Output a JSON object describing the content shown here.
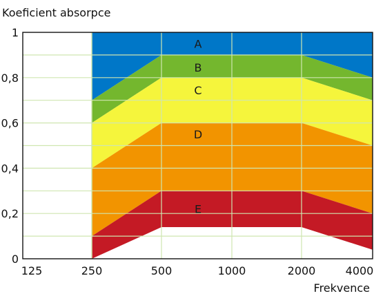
{
  "chart_data": {
    "type": "area",
    "ylabel": "Koeficient absorpce",
    "xlabel": "Frekvence",
    "x_ticks": [
      "125",
      "250",
      "500",
      "1000",
      "2000",
      "4000"
    ],
    "y_ticks": [
      "0",
      "0,2",
      "0,4",
      "0,6",
      "0,8",
      "1"
    ],
    "ylim": [
      0,
      1
    ],
    "grid": true,
    "colors": {
      "A": "#0077c8",
      "B": "#74b72e",
      "C": "#f5f53c",
      "D": "#f29400",
      "E": "#c41a25",
      "grid": "#cfe6b0"
    },
    "x_frequencies": [
      250,
      500,
      1000,
      2000,
      4000
    ],
    "bands": [
      {
        "label": "A",
        "upper": [
          1,
          1,
          1,
          1,
          1
        ],
        "lower": [
          0.7,
          0.9,
          0.9,
          0.9,
          0.8
        ],
        "label_at": [
          1000,
          0.95
        ]
      },
      {
        "label": "B",
        "upper": [
          0.7,
          0.9,
          0.9,
          0.9,
          0.8
        ],
        "lower": [
          0.6,
          0.8,
          0.8,
          0.8,
          0.7
        ],
        "label_at": [
          1000,
          0.845
        ]
      },
      {
        "label": "C",
        "upper": [
          0.6,
          0.8,
          0.8,
          0.8,
          0.7
        ],
        "lower": [
          0.4,
          0.6,
          0.6,
          0.6,
          0.5
        ],
        "label_at": [
          1000,
          0.745
        ]
      },
      {
        "label": "D",
        "upper": [
          0.4,
          0.6,
          0.6,
          0.6,
          0.5
        ],
        "lower": [
          0.1,
          0.3,
          0.3,
          0.3,
          0.2
        ],
        "label_at": [
          1000,
          0.55
        ]
      },
      {
        "label": "E",
        "upper": [
          0.1,
          0.3,
          0.3,
          0.3,
          0.2
        ],
        "lower": [
          0,
          0.14,
          0.14,
          0.14,
          0.04
        ],
        "label_at": [
          1000,
          0.22
        ]
      }
    ]
  }
}
